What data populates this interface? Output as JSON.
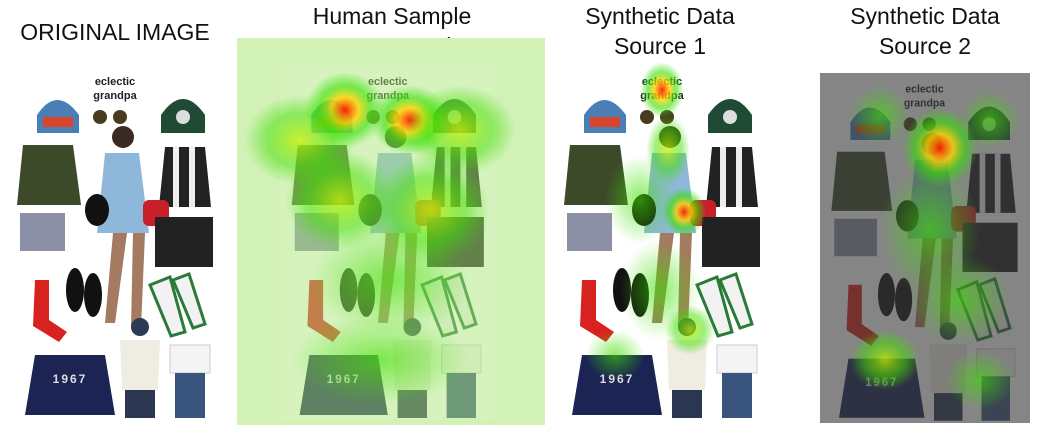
{
  "panels": [
    {
      "title": [
        "ORIGINAL IMAGE"
      ]
    },
    {
      "title": [
        "Human Sample",
        "Aggregated"
      ]
    },
    {
      "title": [
        "Synthetic Data",
        "Source 1"
      ]
    },
    {
      "title": [
        "Synthetic Data",
        "Source 2"
      ]
    }
  ],
  "collage_text": {
    "brand": [
      "eclectic",
      "grandpa"
    ],
    "sweater": "1967"
  }
}
